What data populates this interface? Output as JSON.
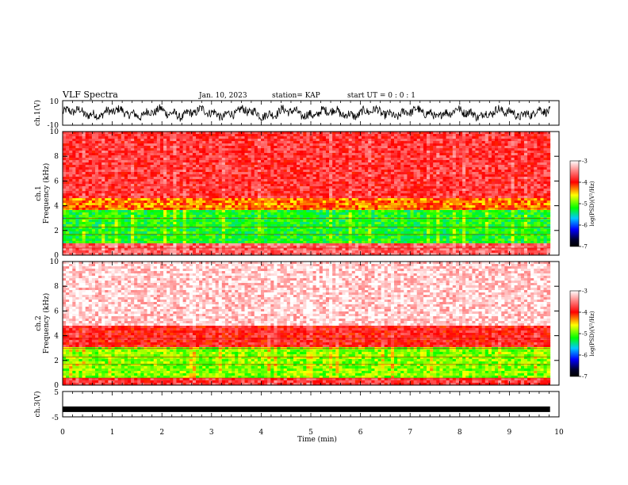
{
  "header": {
    "title": "VLF Spectra",
    "date": "Jan. 10, 2023",
    "station": "station= KAP",
    "start": "start UT =  0 : 0 : 1"
  },
  "chart_data": [
    {
      "type": "line",
      "panel": "ch1-waveform",
      "ylabel": "ch.1(V)",
      "ylim": [
        -10,
        10
      ],
      "yticks": [
        "10",
        "-10"
      ],
      "xlim": [
        0,
        10
      ],
      "description_visible": "waveform oscillating roughly between -7 and 7 V"
    },
    {
      "type": "heatmap",
      "panel": "ch1-spectrogram",
      "ylabel": "ch.1 Frequency (kHz)",
      "ylabel_top": "ch.1",
      "ylabel_bottom": "Frequency (kHz)",
      "ylim": [
        0,
        10
      ],
      "yticks": [
        "0",
        "2",
        "4",
        "6",
        "8",
        "10"
      ],
      "xlim": [
        0,
        10
      ],
      "data_end_min": 9.82,
      "bands": [
        {
          "from_khz": 0.0,
          "to_khz": 0.9,
          "level": -3.6
        },
        {
          "from_khz": 0.9,
          "to_khz": 3.6,
          "level": -5.2
        },
        {
          "from_khz": 3.6,
          "to_khz": 4.6,
          "level": -4.3
        },
        {
          "from_khz": 4.6,
          "to_khz": 10.0,
          "level": -3.8
        }
      ],
      "colorbar": {
        "label": "log(PSD)(V²/Hz)",
        "range": [
          -7,
          -3
        ],
        "ticks": [
          "-3",
          "-4",
          "-5",
          "-6",
          "-7"
        ]
      }
    },
    {
      "type": "heatmap",
      "panel": "ch2-spectrogram",
      "ylabel": "ch.2 Frequency (kHz)",
      "ylabel_top": "ch.2",
      "ylabel_bottom": "Frequency (kHz)",
      "ylim": [
        0,
        10
      ],
      "yticks": [
        "0",
        "2",
        "4",
        "6",
        "8",
        "10"
      ],
      "xlim": [
        0,
        10
      ],
      "data_end_min": 9.82,
      "bands": [
        {
          "from_khz": 0.0,
          "to_khz": 0.6,
          "level": -3.8
        },
        {
          "from_khz": 0.6,
          "to_khz": 3.1,
          "level": -4.9
        },
        {
          "from_khz": 3.1,
          "to_khz": 4.8,
          "level": -3.9
        },
        {
          "from_khz": 4.8,
          "to_khz": 10.0,
          "level": -3.2
        }
      ],
      "colorbar": {
        "label": "log(PSD)(V²/Hz)",
        "range": [
          -7,
          -3
        ],
        "ticks": [
          "-3",
          "-4",
          "-5",
          "-6",
          "-7"
        ]
      }
    },
    {
      "type": "line",
      "panel": "ch3-waveform",
      "ylabel": "ch.3(V)",
      "ylim": [
        -5,
        5
      ],
      "yticks": [
        "5",
        "-5"
      ],
      "xlim": [
        0,
        10
      ],
      "level_v": -2,
      "xlabel": "Time (min)",
      "xticks": [
        "0",
        "1",
        "2",
        "3",
        "4",
        "5",
        "6",
        "7",
        "8",
        "9",
        "10"
      ]
    }
  ],
  "colors": {
    "colormap": [
      "#000000",
      "#0000ff",
      "#00ff00",
      "#ffff00",
      "#ff0000",
      "#ffffff"
    ],
    "trace": "#000000"
  }
}
